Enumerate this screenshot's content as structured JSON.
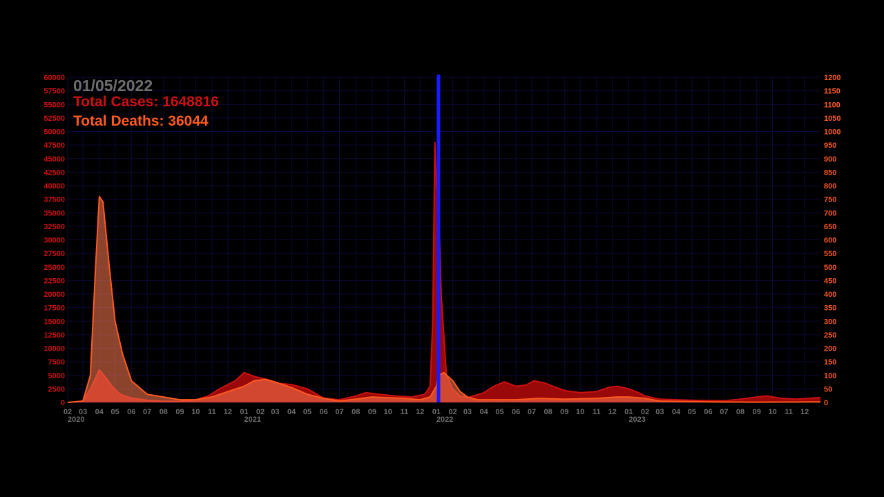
{
  "overlay": {
    "date": "01/05/2022",
    "cases_text": "Total Cases: 1648816",
    "deaths_text": "Total Deaths: 36044"
  },
  "colors": {
    "background": "#000000",
    "grid": "#0a0a3a",
    "cases_fill": "#b40a0a",
    "cases_line": "#cc1010",
    "deaths_line": "#ff5a1e",
    "deaths_fill": "#ff7a50",
    "left_axis": "#d01010",
    "right_axis": "#ff5a1e",
    "date_text": "#6e6e6e",
    "cursor": "#1a1aff",
    "month_text": "#6e6e6e"
  },
  "chart_data": {
    "type": "area",
    "x_unit": "date",
    "x_range": [
      "2020-02-01",
      "2023-12-31"
    ],
    "current_date": "2022-01-05",
    "y_left": {
      "label": "",
      "range": [
        0,
        60000
      ],
      "ticks": [
        0,
        2500,
        5000,
        7500,
        10000,
        12500,
        15000,
        17500,
        20000,
        22500,
        25000,
        27500,
        30000,
        32500,
        35000,
        37500,
        40000,
        42500,
        45000,
        47500,
        50000,
        52500,
        55000,
        57500,
        60000
      ]
    },
    "y_right": {
      "label": "",
      "range": [
        0,
        1200
      ],
      "ticks": [
        0,
        50,
        100,
        150,
        200,
        250,
        300,
        350,
        400,
        450,
        500,
        550,
        600,
        650,
        700,
        750,
        800,
        850,
        900,
        950,
        1000,
        1050,
        1100,
        1150,
        1200
      ]
    },
    "x_month_ticks": [
      {
        "date": "2020-02-01",
        "label": "02"
      },
      {
        "date": "2020-03-01",
        "label": "03"
      },
      {
        "date": "2020-04-01",
        "label": "04"
      },
      {
        "date": "2020-05-01",
        "label": "05"
      },
      {
        "date": "2020-06-01",
        "label": "06"
      },
      {
        "date": "2020-07-01",
        "label": "07"
      },
      {
        "date": "2020-08-01",
        "label": "08"
      },
      {
        "date": "2020-09-01",
        "label": "09"
      },
      {
        "date": "2020-10-01",
        "label": "10"
      },
      {
        "date": "2020-11-01",
        "label": "11"
      },
      {
        "date": "2020-12-01",
        "label": "12"
      },
      {
        "date": "2021-01-01",
        "label": "01"
      },
      {
        "date": "2021-02-01",
        "label": "02"
      },
      {
        "date": "2021-03-01",
        "label": "03"
      },
      {
        "date": "2021-04-01",
        "label": "04"
      },
      {
        "date": "2021-05-01",
        "label": "05"
      },
      {
        "date": "2021-06-01",
        "label": "06"
      },
      {
        "date": "2021-07-01",
        "label": "07"
      },
      {
        "date": "2021-08-01",
        "label": "08"
      },
      {
        "date": "2021-09-01",
        "label": "09"
      },
      {
        "date": "2021-10-01",
        "label": "10"
      },
      {
        "date": "2021-11-01",
        "label": "11"
      },
      {
        "date": "2021-12-01",
        "label": "12"
      },
      {
        "date": "2022-01-01",
        "label": "01"
      },
      {
        "date": "2022-02-01",
        "label": "02"
      },
      {
        "date": "2022-03-01",
        "label": "03"
      },
      {
        "date": "2022-04-01",
        "label": "04"
      },
      {
        "date": "2022-05-01",
        "label": "05"
      },
      {
        "date": "2022-06-01",
        "label": "06"
      },
      {
        "date": "2022-07-01",
        "label": "07"
      },
      {
        "date": "2022-08-01",
        "label": "08"
      },
      {
        "date": "2022-09-01",
        "label": "09"
      },
      {
        "date": "2022-10-01",
        "label": "10"
      },
      {
        "date": "2022-11-01",
        "label": "11"
      },
      {
        "date": "2022-12-01",
        "label": "12"
      },
      {
        "date": "2023-01-01",
        "label": "01"
      },
      {
        "date": "2023-02-01",
        "label": "02"
      },
      {
        "date": "2023-03-01",
        "label": "03"
      },
      {
        "date": "2023-04-01",
        "label": "04"
      },
      {
        "date": "2023-05-01",
        "label": "05"
      },
      {
        "date": "2023-06-01",
        "label": "06"
      },
      {
        "date": "2023-07-01",
        "label": "07"
      },
      {
        "date": "2023-08-01",
        "label": "08"
      },
      {
        "date": "2023-09-01",
        "label": "09"
      },
      {
        "date": "2023-10-01",
        "label": "10"
      },
      {
        "date": "2023-11-01",
        "label": "11"
      },
      {
        "date": "2023-12-01",
        "label": "12"
      }
    ],
    "x_year_ticks": [
      {
        "date": "2020-02-01",
        "label": "2020"
      },
      {
        "date": "2021-01-01",
        "label": "2021"
      },
      {
        "date": "2022-01-01",
        "label": "2022"
      },
      {
        "date": "2023-01-01",
        "label": "2023"
      }
    ],
    "series": [
      {
        "name": "",
        "axis": "left",
        "x": [
          "2020-02-01",
          "2020-03-01",
          "2020-03-15",
          "2020-03-25",
          "2020-04-01",
          "2020-04-10",
          "2020-04-25",
          "2020-05-10",
          "2020-06-01",
          "2020-07-01",
          "2020-08-01",
          "2020-09-01",
          "2020-10-01",
          "2020-10-25",
          "2020-11-15",
          "2020-12-15",
          "2021-01-01",
          "2021-01-20",
          "2021-02-15",
          "2021-03-10",
          "2021-04-01",
          "2021-05-01",
          "2021-06-01",
          "2021-07-01",
          "2021-08-01",
          "2021-08-20",
          "2021-09-15",
          "2021-10-15",
          "2021-11-15",
          "2021-12-10",
          "2021-12-20",
          "2021-12-25",
          "2021-12-29",
          "2022-01-01",
          "2022-01-05",
          "2022-01-10",
          "2022-01-20",
          "2022-02-01",
          "2022-02-15",
          "2022-03-01",
          "2022-04-01",
          "2022-04-20",
          "2022-05-10",
          "2022-06-01",
          "2022-06-20",
          "2022-07-05",
          "2022-07-25",
          "2022-08-15",
          "2022-09-01",
          "2022-10-01",
          "2022-11-01",
          "2022-11-25",
          "2022-12-10",
          "2023-01-01",
          "2023-01-20",
          "2023-02-01",
          "2023-03-01",
          "2023-05-01",
          "2023-07-01",
          "2023-08-01",
          "2023-09-01",
          "2023-09-20",
          "2023-10-15",
          "2023-11-15",
          "2023-12-31"
        ],
        "values": [
          0,
          200,
          2500,
          4500,
          6000,
          5000,
          3000,
          1500,
          800,
          400,
          200,
          200,
          500,
          1200,
          2500,
          4000,
          5500,
          4800,
          4200,
          3500,
          3300,
          2500,
          800,
          500,
          1200,
          1800,
          1500,
          1200,
          1000,
          1500,
          3000,
          15000,
          48000,
          40000,
          38000,
          20000,
          5000,
          2500,
          1200,
          900,
          1800,
          3000,
          3800,
          3000,
          3200,
          4000,
          3600,
          2800,
          2200,
          1800,
          2000,
          2800,
          3000,
          2500,
          1800,
          1200,
          600,
          400,
          300,
          600,
          1000,
          1200,
          800,
          600,
          900
        ]
      },
      {
        "name": "",
        "axis": "right",
        "x": [
          "2020-02-01",
          "2020-03-01",
          "2020-03-15",
          "2020-03-25",
          "2020-04-01",
          "2020-04-08",
          "2020-04-20",
          "2020-05-01",
          "2020-05-15",
          "2020-06-01",
          "2020-07-01",
          "2020-09-01",
          "2020-10-01",
          "2020-11-01",
          "2020-12-01",
          "2021-01-01",
          "2021-01-20",
          "2021-02-10",
          "2021-03-01",
          "2021-04-01",
          "2021-05-01",
          "2021-06-01",
          "2021-07-01",
          "2021-09-01",
          "2021-11-01",
          "2021-12-01",
          "2021-12-20",
          "2022-01-01",
          "2022-01-05",
          "2022-01-15",
          "2022-02-01",
          "2022-02-15",
          "2022-03-01",
          "2022-03-20",
          "2022-04-01",
          "2022-06-01",
          "2022-07-15",
          "2022-09-01",
          "2022-11-01",
          "2022-12-10",
          "2023-01-01",
          "2023-02-01",
          "2023-03-01",
          "2023-06-01",
          "2023-09-01",
          "2023-12-31"
        ],
        "values": [
          0,
          5,
          100,
          500,
          760,
          740,
          500,
          300,
          180,
          80,
          30,
          10,
          10,
          20,
          40,
          60,
          80,
          85,
          75,
          55,
          30,
          15,
          5,
          20,
          15,
          10,
          20,
          60,
          100,
          110,
          80,
          40,
          20,
          10,
          10,
          10,
          15,
          12,
          15,
          20,
          20,
          15,
          5,
          2,
          1,
          2
        ]
      }
    ]
  }
}
